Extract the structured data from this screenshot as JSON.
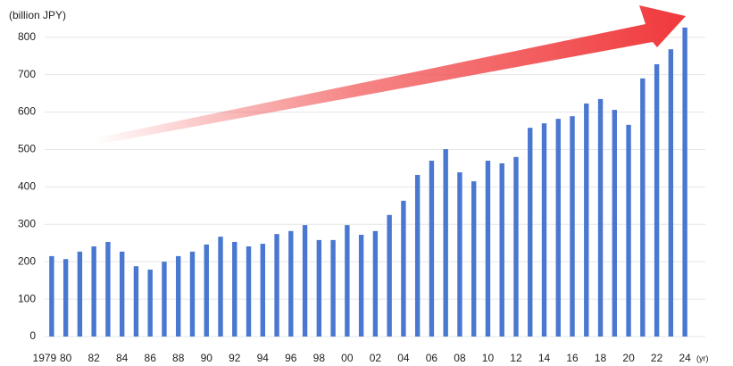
{
  "chart_data": {
    "type": "bar",
    "y_label": "(billion JPY)",
    "x_label": "(yr)",
    "categories": [
      "1979",
      "80",
      null,
      "82",
      null,
      "84",
      null,
      "86",
      null,
      "88",
      null,
      "90",
      null,
      "92",
      null,
      "94",
      null,
      "96",
      null,
      "98",
      null,
      "00",
      null,
      "02",
      null,
      "04",
      null,
      "06",
      null,
      "08",
      null,
      "10",
      null,
      "12",
      null,
      "14",
      null,
      "16",
      null,
      "18",
      null,
      "20",
      null,
      "22",
      null,
      "24"
    ],
    "values": [
      215,
      207,
      227,
      241,
      253,
      227,
      188,
      179,
      200,
      215,
      227,
      246,
      267,
      253,
      241,
      248,
      274,
      282,
      298,
      258,
      258,
      298,
      272,
      282,
      325,
      363,
      432,
      470,
      501,
      439,
      415,
      470,
      463,
      480,
      558,
      570,
      582,
      589,
      623,
      635,
      606,
      566,
      690,
      728,
      768,
      826
    ],
    "color": "#4a78d0",
    "ylim": [
      0,
      840
    ],
    "yticks": [
      0,
      100,
      200,
      300,
      400,
      500,
      600,
      700,
      800
    ],
    "grid": true
  }
}
